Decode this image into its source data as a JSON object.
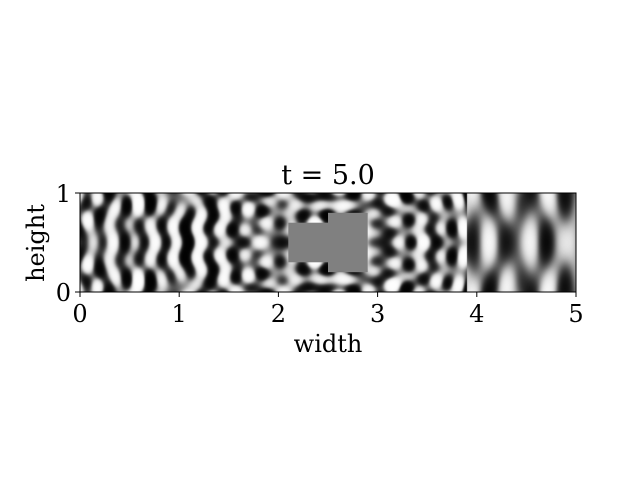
{
  "chart_data": {
    "type": "heatmap",
    "title": "t = 5.0",
    "xlabel": "width",
    "ylabel": "height",
    "xlim": [
      0,
      5
    ],
    "ylim": [
      0,
      1
    ],
    "xticks": [
      "0",
      "1",
      "2",
      "3",
      "4",
      "5"
    ],
    "yticks": [
      "0",
      "1"
    ],
    "colormap": "gray",
    "grid": false,
    "obstacles": [
      {
        "x0": 2.1,
        "x1": 2.5,
        "y0": 0.3,
        "y1": 0.7
      },
      {
        "x0": 2.5,
        "x1": 2.9,
        "y0": 0.2,
        "y1": 0.8
      }
    ]
  }
}
